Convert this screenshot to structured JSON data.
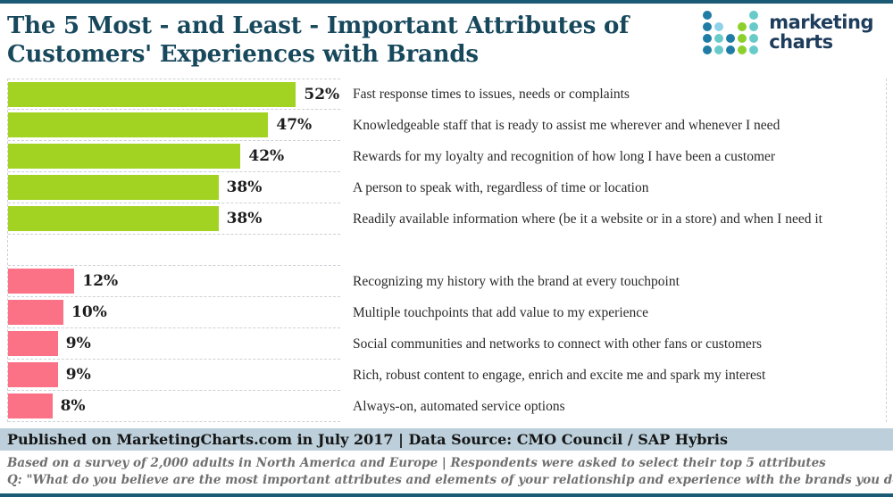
{
  "header": {
    "title": "The 5 Most - and Least - Important Attributes of Customers' Experiences with Brands",
    "logo": {
      "word1": "marketing",
      "word2": "charts",
      "dot_grid": [
        [
          1,
          0,
          0,
          0,
          2
        ],
        [
          1,
          3,
          0,
          4,
          2
        ],
        [
          1,
          2,
          1,
          4,
          2
        ],
        [
          1,
          2,
          1,
          4,
          2
        ]
      ],
      "dot_colors": {
        "1": "#1f7ca4",
        "2": "#68cbc9",
        "3": "#8ed1ea",
        "4": "#8ed02b"
      }
    }
  },
  "chart_data": {
    "type": "bar",
    "orientation": "horizontal",
    "unit": "%",
    "xlim": [
      0,
      60
    ],
    "grid": "dashed-row-separators",
    "legend_position": "none",
    "groups": [
      {
        "name": "most-important",
        "bar_color": "#a3d322",
        "items": [
          {
            "label": "Fast response times to issues, needs or complaints",
            "value": 52,
            "value_label": "52%"
          },
          {
            "label": "Knowledgeable staff that is ready to assist me wherever and whenever I need",
            "value": 47,
            "value_label": "47%"
          },
          {
            "label": "Rewards for my loyalty and recognition of how long I have been a customer",
            "value": 42,
            "value_label": "42%"
          },
          {
            "label": "A person to speak with, regardless of time or location",
            "value": 38,
            "value_label": "38%"
          },
          {
            "label": "Readily available information where (be it a website or in a store) and when I need it",
            "value": 38,
            "value_label": "38%"
          }
        ]
      },
      {
        "name": "least-important",
        "bar_color": "#fb7186",
        "items": [
          {
            "label": "Recognizing my history with the brand at every touchpoint",
            "value": 12,
            "value_label": "12%"
          },
          {
            "label": "Multiple touchpoints that add value to my experience",
            "value": 10,
            "value_label": "10%"
          },
          {
            "label": "Social communities and networks to connect with other fans or customers",
            "value": 9,
            "value_label": "9%"
          },
          {
            "label": "Rich, robust content to engage, enrich and excite me and spark my interest",
            "value": 9,
            "value_label": "9%"
          },
          {
            "label": "Always-on, automated service options",
            "value": 8,
            "value_label": "8%"
          }
        ]
      }
    ]
  },
  "footer": {
    "published": "Published on MarketingCharts.com in July 2017 | Data Source: CMO Council / SAP Hybris",
    "note_line1": "Based on a survey of 2,000 adults in North America and Europe | Respondents were asked to select their top 5 attributes",
    "note_line2": "Q: \"What do you believe are the most important attributes and elements of your relationship and experience with the brands you do business with?\""
  },
  "colors": {
    "accent_border": "#1b5a74",
    "title": "#17485c",
    "footer_band_bg": "#bccfda",
    "grid_line": "#cdd1d5",
    "green_bar": "#a3d322",
    "pink_bar": "#fb7186"
  }
}
